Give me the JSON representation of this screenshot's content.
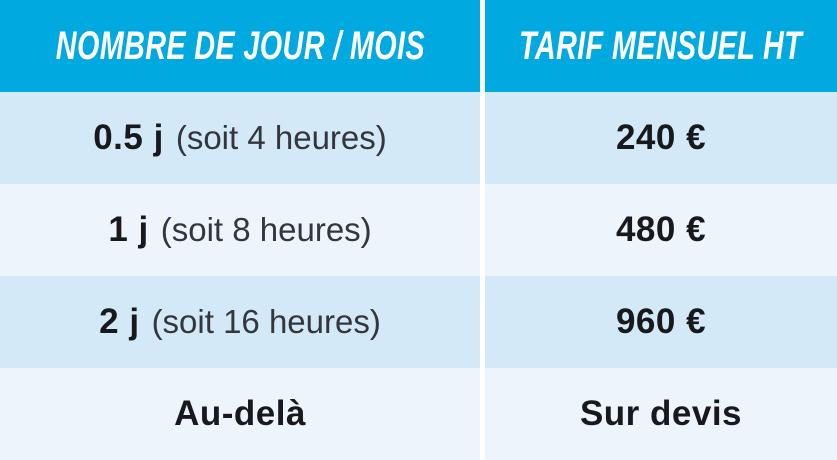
{
  "table": {
    "columns": [
      {
        "header": "NOMBRE DE JOUR / MOIS"
      },
      {
        "header": "TARIF MENSUEL HT"
      }
    ],
    "rows": [
      {
        "days_bold": "0.5 j",
        "days_note": "(soit 4 heures)",
        "price": "240 €"
      },
      {
        "days_bold": "1 j",
        "days_note": "(soit 8 heures)",
        "price": "480 €"
      },
      {
        "days_bold": "2 j",
        "days_note": "(soit 16 heures)",
        "price": "960 €"
      },
      {
        "days_bold": "Au-delà",
        "days_note": "",
        "price": "Sur devis"
      }
    ],
    "colors": {
      "header_bg": "#00a9e0",
      "header_text": "#ffffff",
      "row_light": "#d3e9f7",
      "row_extra_light": "#eef4fb",
      "text_dark": "#17191d",
      "text_note": "#33363c",
      "column_gap": "#ffffff"
    }
  }
}
